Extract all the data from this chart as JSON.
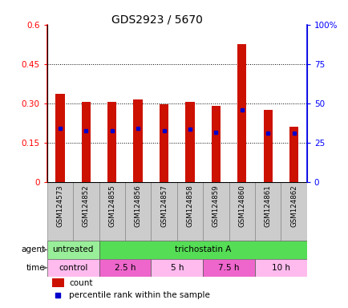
{
  "title": "GDS2923 / 5670",
  "samples": [
    "GSM124573",
    "GSM124852",
    "GSM124855",
    "GSM124856",
    "GSM124857",
    "GSM124858",
    "GSM124859",
    "GSM124860",
    "GSM124861",
    "GSM124862"
  ],
  "count_values": [
    0.335,
    0.305,
    0.305,
    0.315,
    0.295,
    0.305,
    0.29,
    0.525,
    0.275,
    0.21
  ],
  "percentile_values": [
    0.205,
    0.195,
    0.195,
    0.205,
    0.195,
    0.2,
    0.19,
    0.275,
    0.185,
    0.185
  ],
  "ylim_left": [
    0,
    0.6
  ],
  "ylim_right": [
    0,
    100
  ],
  "yticks_left": [
    0,
    0.15,
    0.3,
    0.45,
    0.6
  ],
  "yticks_right": [
    0,
    25,
    50,
    75,
    100
  ],
  "ytick_labels_left": [
    "0",
    "0.15",
    "0.30",
    "0.45",
    "0.6"
  ],
  "ytick_labels_right": [
    "0",
    "25",
    "50",
    "75",
    "100%"
  ],
  "bar_color": "#cc1100",
  "percentile_color": "#0000cc",
  "agent_row": [
    {
      "label": "untreated",
      "start": 0,
      "end": 2,
      "color": "#99ee99"
    },
    {
      "label": "trichostatin A",
      "start": 2,
      "end": 10,
      "color": "#55dd55"
    }
  ],
  "time_row": [
    {
      "label": "control",
      "start": 0,
      "end": 2,
      "color": "#ffbbee"
    },
    {
      "label": "2.5 h",
      "start": 2,
      "end": 4,
      "color": "#ee66cc"
    },
    {
      "label": "5 h",
      "start": 4,
      "end": 6,
      "color": "#ffbbee"
    },
    {
      "label": "7.5 h",
      "start": 6,
      "end": 8,
      "color": "#ee66cc"
    },
    {
      "label": "10 h",
      "start": 8,
      "end": 10,
      "color": "#ffbbee"
    }
  ],
  "legend_count_color": "#cc1100",
  "legend_percentile_color": "#0000cc",
  "grid_yticks": [
    0.15,
    0.3,
    0.45
  ],
  "bar_width": 0.35
}
